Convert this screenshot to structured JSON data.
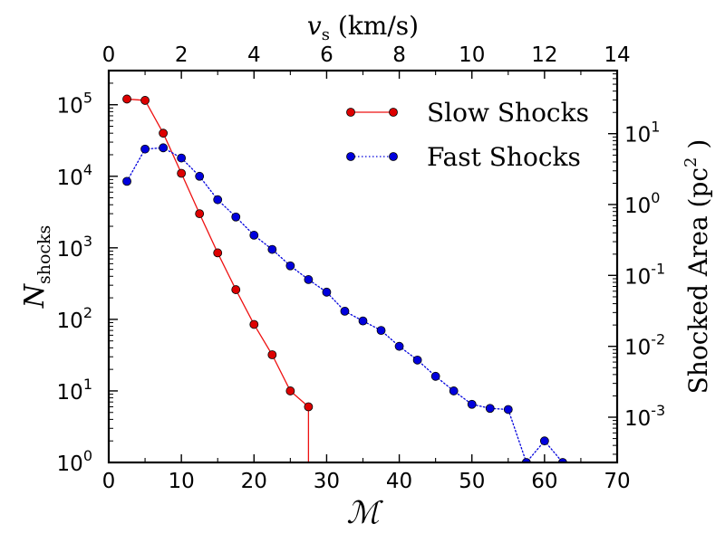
{
  "chart_data": {
    "type": "line",
    "x_axis": {
      "label_symbol": "ℳ",
      "range": [
        0,
        70
      ],
      "ticks": [
        "0",
        "10",
        "20",
        "30",
        "40",
        "50",
        "60",
        "70"
      ]
    },
    "x2_axis": {
      "label_main": "v",
      "label_sub": "s",
      "label_unit": " (km/s)",
      "range": [
        0,
        14
      ],
      "ticks": [
        "0",
        "2",
        "4",
        "6",
        "8",
        "10",
        "12",
        "14"
      ]
    },
    "y_axis": {
      "label_main": "N",
      "label_sub": "shocks",
      "scale": "log",
      "range": [
        1,
        300000
      ],
      "tick_exponents": [
        "0",
        "1",
        "2",
        "3",
        "4",
        "5"
      ]
    },
    "y2_axis": {
      "label_main": "Shocked Area (pc",
      "label_sup": "2",
      "label_close": ")",
      "scale": "log",
      "tick_exponents": [
        "-3",
        "-2",
        "-1",
        "0",
        "1"
      ]
    },
    "legend_placement": "top-right",
    "series": [
      {
        "name": "Slow Shocks",
        "color": "#ee1111",
        "marker_color": "#dd0000",
        "line_style": "solid",
        "x": [
          2.5,
          5,
          7.5,
          10,
          12.5,
          15,
          17.5,
          20,
          22.5,
          25,
          27.5
        ],
        "y": [
          120000,
          115000,
          40000,
          11000,
          3000,
          850,
          260,
          85,
          32,
          10,
          6
        ]
      },
      {
        "name": "Fast Shocks",
        "color": "#0000dd",
        "marker_color": "#0000dd",
        "line_style": "dotted",
        "x": [
          2.5,
          5,
          7.5,
          10,
          12.5,
          15,
          17.5,
          20,
          22.5,
          25,
          27.5,
          30,
          32.5,
          35,
          37.5,
          40,
          42.5,
          45,
          47.5,
          50,
          52.5,
          55,
          57.5,
          60,
          62.5
        ],
        "y": [
          8500,
          24000,
          25000,
          18000,
          10000,
          4700,
          2700,
          1500,
          950,
          560,
          360,
          240,
          130,
          95,
          70,
          42,
          27,
          16,
          10,
          6.5,
          5.7,
          5.5,
          1,
          2,
          1
        ]
      }
    ]
  }
}
